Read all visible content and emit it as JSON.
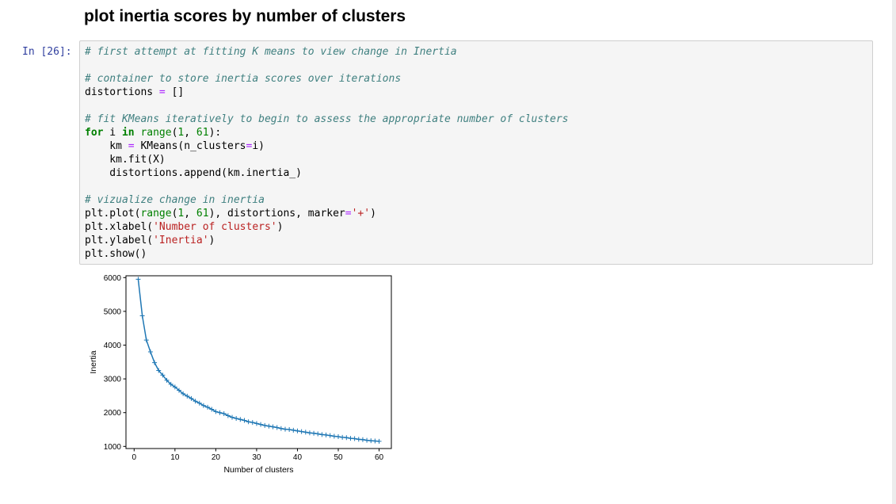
{
  "heading": "plot inertia scores by number of clusters",
  "cell": {
    "prompt": "In [26]:",
    "lines": [
      [
        {
          "t": "# first attempt at fitting K means to view change in Inertia",
          "c": "cm"
        }
      ],
      [],
      [
        {
          "t": "# container to store inertia scores over iterations",
          "c": "cm"
        }
      ],
      [
        {
          "t": "distortions "
        },
        {
          "t": "=",
          "c": "op"
        },
        {
          "t": " []"
        }
      ],
      [],
      [
        {
          "t": "# fit KMeans iteratively to begin to assess the appropriate number of clusters",
          "c": "cm"
        }
      ],
      [
        {
          "t": "for",
          "c": "kw"
        },
        {
          "t": " i "
        },
        {
          "t": "in",
          "c": "kw"
        },
        {
          "t": " "
        },
        {
          "t": "range",
          "c": "bi"
        },
        {
          "t": "("
        },
        {
          "t": "1",
          "c": "nu"
        },
        {
          "t": ", "
        },
        {
          "t": "61",
          "c": "nu"
        },
        {
          "t": "):"
        }
      ],
      [
        {
          "t": "    km "
        },
        {
          "t": "=",
          "c": "op"
        },
        {
          "t": " KMeans(n_clusters"
        },
        {
          "t": "=",
          "c": "op"
        },
        {
          "t": "i)"
        }
      ],
      [
        {
          "t": "    km.fit(X)"
        }
      ],
      [
        {
          "t": "    distortions.append(km.inertia_)"
        }
      ],
      [],
      [
        {
          "t": "# vizualize change in inertia",
          "c": "cm"
        }
      ],
      [
        {
          "t": "plt.plot("
        },
        {
          "t": "range",
          "c": "bi"
        },
        {
          "t": "("
        },
        {
          "t": "1",
          "c": "nu"
        },
        {
          "t": ", "
        },
        {
          "t": "61",
          "c": "nu"
        },
        {
          "t": "), distortions, marker"
        },
        {
          "t": "=",
          "c": "op"
        },
        {
          "t": "'+'",
          "c": "st"
        },
        {
          "t": ")"
        }
      ],
      [
        {
          "t": "plt.xlabel("
        },
        {
          "t": "'Number of clusters'",
          "c": "st"
        },
        {
          "t": ")"
        }
      ],
      [
        {
          "t": "plt.ylabel("
        },
        {
          "t": "'Inertia'",
          "c": "st"
        },
        {
          "t": ")"
        }
      ],
      [
        {
          "t": "plt.show()"
        }
      ]
    ]
  },
  "chart_data": {
    "type": "line",
    "xlabel": "Number of clusters",
    "ylabel": "Inertia",
    "xlim": [
      -2,
      63
    ],
    "ylim": [
      937,
      6054
    ],
    "xticks": [
      0,
      10,
      20,
      30,
      40,
      50,
      60
    ],
    "yticks": [
      1000,
      2000,
      3000,
      4000,
      5000,
      6000
    ],
    "marker": "+",
    "color": "#1f77b4",
    "series": [
      {
        "x": [
          1,
          2,
          3,
          4,
          5,
          6,
          7,
          8,
          9,
          10,
          11,
          12,
          13,
          14,
          15,
          16,
          17,
          18,
          19,
          20,
          21,
          22,
          23,
          24,
          25,
          26,
          27,
          28,
          29,
          30,
          31,
          32,
          33,
          34,
          35,
          36,
          37,
          38,
          39,
          40,
          41,
          42,
          43,
          44,
          45,
          46,
          47,
          48,
          49,
          50,
          51,
          52,
          53,
          54,
          55,
          56,
          57,
          58,
          59,
          60
        ],
        "values": [
          5950,
          4870,
          4150,
          3800,
          3480,
          3250,
          3110,
          2960,
          2840,
          2760,
          2660,
          2560,
          2490,
          2420,
          2340,
          2280,
          2210,
          2160,
          2100,
          2030,
          2000,
          1970,
          1910,
          1860,
          1830,
          1800,
          1770,
          1730,
          1710,
          1680,
          1650,
          1620,
          1600,
          1580,
          1560,
          1530,
          1510,
          1500,
          1480,
          1460,
          1440,
          1420,
          1400,
          1390,
          1370,
          1350,
          1340,
          1320,
          1300,
          1290,
          1270,
          1260,
          1240,
          1230,
          1210,
          1200,
          1180,
          1170,
          1160,
          1150
        ]
      }
    ]
  }
}
